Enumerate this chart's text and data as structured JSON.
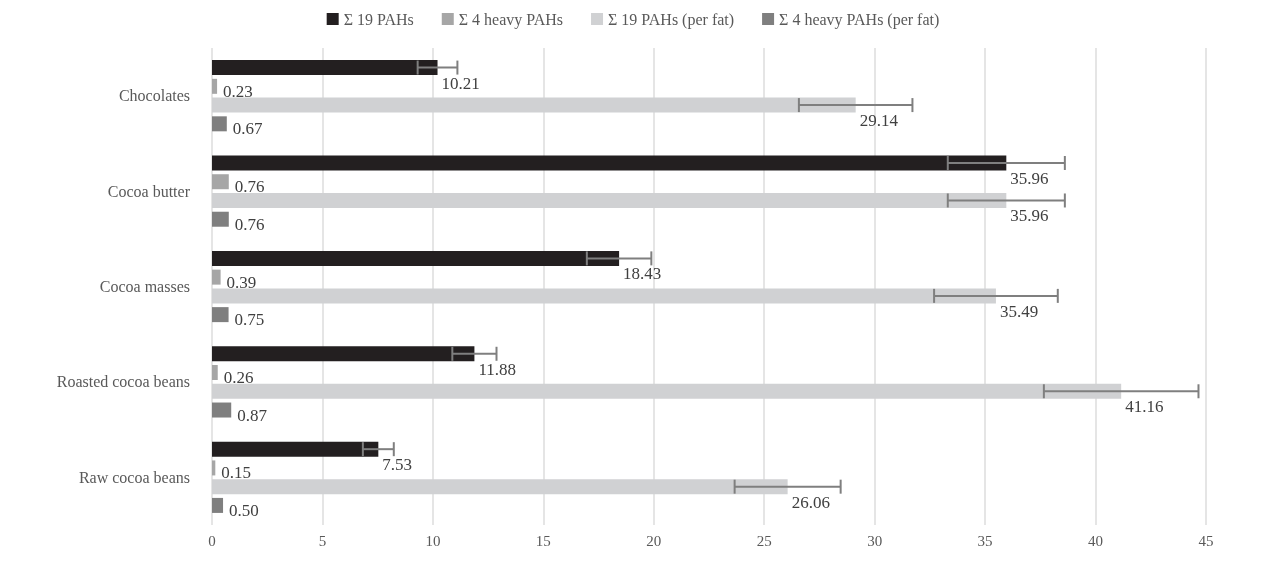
{
  "chart_data": {
    "type": "bar",
    "orientation": "horizontal",
    "categories": [
      "Chocolates",
      "Cocoa butter",
      "Cocoa masses",
      "Roasted cocoa beans",
      "Raw cocoa beans"
    ],
    "series": [
      {
        "name": "Σ 19 PAHs",
        "color": "#231f20",
        "values": [
          10.21,
          35.96,
          18.43,
          11.88,
          7.53
        ],
        "value_labels": [
          "10.21",
          "35.96",
          "18.43",
          "11.88",
          "7.53"
        ],
        "errors": [
          0.9,
          2.65,
          1.46,
          1.0,
          0.7
        ]
      },
      {
        "name": "Σ 4 heavy PAHs",
        "color": "#a6a6a6",
        "values": [
          0.23,
          0.76,
          0.39,
          0.26,
          0.15
        ],
        "value_labels": [
          "0.23",
          "0.76",
          "0.39",
          "0.26",
          "0.15"
        ]
      },
      {
        "name": "Σ 19 PAHs (per fat)",
        "color": "#d0d1d3",
        "values": [
          29.14,
          35.96,
          35.49,
          41.16,
          26.06
        ],
        "value_labels": [
          "29.14",
          "35.96",
          "35.49",
          "41.16",
          "26.06"
        ],
        "errors": [
          2.57,
          2.65,
          2.8,
          3.5,
          2.4
        ]
      },
      {
        "name": "Σ 4 heavy PAHs (per fat)",
        "color": "#7f7f7f",
        "values": [
          0.67,
          0.76,
          0.75,
          0.87,
          0.5
        ],
        "value_labels": [
          "0.67",
          "0.76",
          "0.75",
          "0.87",
          "0.50"
        ]
      }
    ],
    "xlim": [
      0,
      45
    ],
    "xticks": [
      0,
      5,
      10,
      15,
      20,
      25,
      30,
      35,
      40,
      45
    ],
    "grid": "x",
    "legend": "top"
  }
}
